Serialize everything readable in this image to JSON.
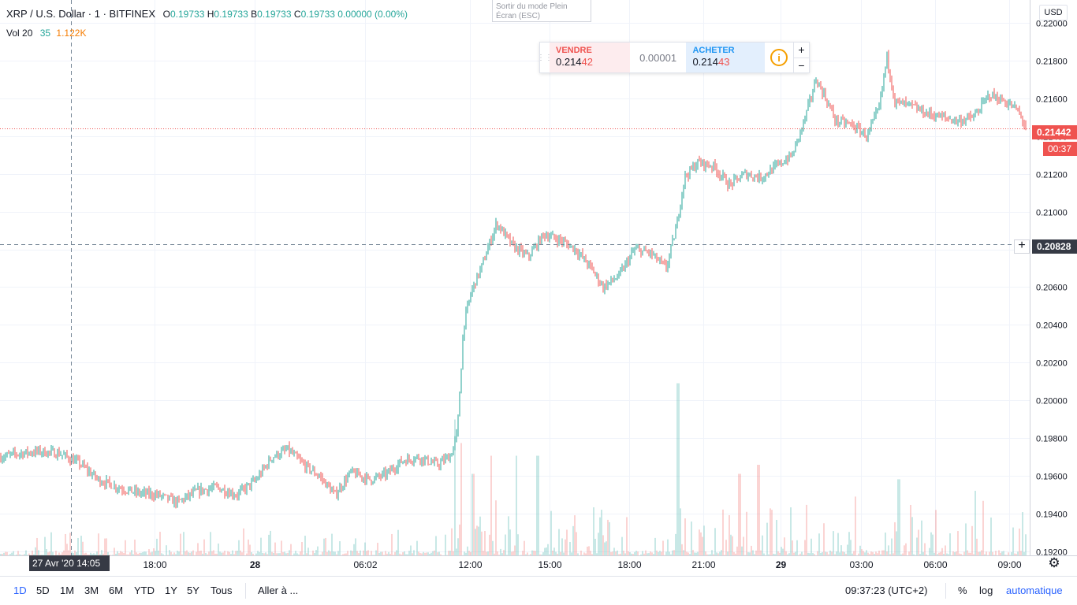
{
  "header": {
    "symbol": "XRP / U.S. Dollar · 1 · BITFINEX",
    "open_label": "O",
    "open": "0.19733",
    "high_label": "H",
    "high": "0.19733",
    "low_label": "B",
    "low": "0.19733",
    "close_label": "C",
    "close": "0.19733",
    "change": "0.00000 (0.00%)"
  },
  "volume_legend": {
    "label": "Vol 20",
    "v1": "35",
    "v2": "1.122K"
  },
  "fullscreen_hint": {
    "line1": "Sortir du mode Plein",
    "line2": "Écran (ESC)"
  },
  "trade_panel": {
    "sell_label": "VENDRE",
    "sell_price_main": "0.214",
    "sell_price_tail": "42",
    "spread": "0.00001",
    "buy_label": "ACHETER",
    "buy_price_main": "0.214",
    "buy_price_tail": "43",
    "info_glyph": "i",
    "plus": "+",
    "minus": "−"
  },
  "price_axis": {
    "currency": "USD",
    "last_price": "0.21442",
    "countdown": "00:37",
    "crosshair_price": "0.20828"
  },
  "crosshair_time": "27 Avr '20   14:05",
  "bottom_toolbar": {
    "ranges": [
      "1D",
      "5D",
      "1M",
      "3M",
      "6M",
      "YTD",
      "1Y",
      "5Y",
      "Tous"
    ],
    "goto": "Aller à ...",
    "clock": "09:37:23 (UTC+2)",
    "percent": "%",
    "log": "log",
    "auto": "automatique"
  },
  "colors": {
    "up": "#26a69a",
    "down": "#ef5350",
    "grid": "#f0f3fa",
    "axis_text": "#131722"
  },
  "chart_data": {
    "type": "candlestick",
    "symbol": "XRP / U.S. Dollar",
    "interval": "1",
    "exchange": "BITFINEX",
    "ylim": [
      0.1918,
      0.2212
    ],
    "y_ticks": [
      "0.22000",
      "0.21800",
      "0.21600",
      "0.21400",
      "0.21200",
      "0.21000",
      "0.20800",
      "0.20600",
      "0.20400",
      "0.20200",
      "0.20000",
      "0.19800",
      "0.19600",
      "0.19400",
      "0.19200"
    ],
    "x_ticks": [
      "18:00",
      "28",
      "06:02",
      "12:00",
      "15:00",
      "18:00",
      "21:00",
      "29",
      "03:00",
      "06:00",
      "09:00"
    ],
    "close_path_keypoints": [
      [
        0,
        0.197
      ],
      [
        25,
        0.1972
      ],
      [
        50,
        0.1973
      ],
      [
        75,
        0.1972
      ],
      [
        100,
        0.1967
      ],
      [
        125,
        0.1958
      ],
      [
        150,
        0.1954
      ],
      [
        175,
        0.1951
      ],
      [
        200,
        0.195
      ],
      [
        225,
        0.1946
      ],
      [
        250,
        0.1952
      ],
      [
        275,
        0.1954
      ],
      [
        300,
        0.195
      ],
      [
        325,
        0.1958
      ],
      [
        345,
        0.197
      ],
      [
        365,
        0.1974
      ],
      [
        385,
        0.1966
      ],
      [
        405,
        0.196
      ],
      [
        425,
        0.195
      ],
      [
        445,
        0.1962
      ],
      [
        470,
        0.1958
      ],
      [
        490,
        0.1961
      ],
      [
        510,
        0.1968
      ],
      [
        530,
        0.197
      ],
      [
        555,
        0.1966
      ],
      [
        572,
        0.1971
      ],
      [
        580,
        0.1983
      ],
      [
        588,
        0.204
      ],
      [
        598,
        0.2058
      ],
      [
        612,
        0.2072
      ],
      [
        620,
        0.2082
      ],
      [
        630,
        0.2094
      ],
      [
        650,
        0.2082
      ],
      [
        670,
        0.2076
      ],
      [
        690,
        0.2088
      ],
      [
        710,
        0.2085
      ],
      [
        730,
        0.208
      ],
      [
        750,
        0.207
      ],
      [
        765,
        0.206
      ],
      [
        785,
        0.2066
      ],
      [
        805,
        0.208
      ],
      [
        825,
        0.2078
      ],
      [
        845,
        0.207
      ],
      [
        858,
        0.2092
      ],
      [
        868,
        0.2118
      ],
      [
        885,
        0.2126
      ],
      [
        905,
        0.2124
      ],
      [
        925,
        0.2114
      ],
      [
        945,
        0.212
      ],
      [
        965,
        0.2118
      ],
      [
        985,
        0.2124
      ],
      [
        1005,
        0.213
      ],
      [
        1020,
        0.2148
      ],
      [
        1035,
        0.217
      ],
      [
        1045,
        0.2162
      ],
      [
        1060,
        0.2148
      ],
      [
        1080,
        0.2146
      ],
      [
        1100,
        0.214
      ],
      [
        1115,
        0.2155
      ],
      [
        1125,
        0.2182
      ],
      [
        1135,
        0.2158
      ],
      [
        1155,
        0.2156
      ],
      [
        1175,
        0.2152
      ],
      [
        1195,
        0.215
      ],
      [
        1215,
        0.2148
      ],
      [
        1235,
        0.215
      ],
      [
        1255,
        0.2162
      ],
      [
        1275,
        0.2158
      ],
      [
        1290,
        0.2154
      ],
      [
        1302,
        0.2144
      ]
    ],
    "volume_spikes": [
      [
        577,
        0.75
      ],
      [
        585,
        0.62
      ],
      [
        600,
        0.45
      ],
      [
        623,
        0.55
      ],
      [
        655,
        0.55
      ],
      [
        682,
        0.55
      ],
      [
        860,
        0.95
      ],
      [
        938,
        0.45
      ],
      [
        962,
        0.5
      ],
      [
        1140,
        0.42
      ]
    ],
    "last_price": 0.21442,
    "crosshair_price": 0.20828
  }
}
